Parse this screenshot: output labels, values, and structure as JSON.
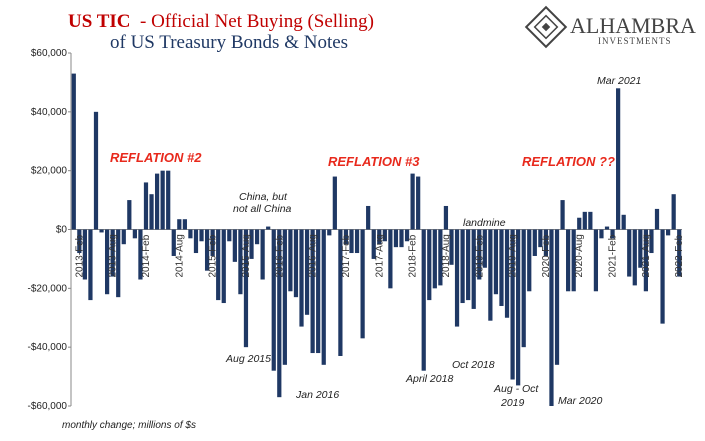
{
  "chart_data": {
    "type": "bar",
    "title_prefix": "US TIC",
    "title": "- Official Net Buying (Selling)",
    "title_line2": "of US Treasury Bonds & Notes",
    "logo": "ALHAMBRA",
    "logo_sub": "INVESTMENTS",
    "note": "monthly change; millions of $s",
    "color": "#1f3864",
    "categories": [
      null,
      "2013-Feb",
      null,
      null,
      null,
      null,
      null,
      "2013-Aug",
      null,
      null,
      null,
      null,
      null,
      "2014-Feb",
      null,
      null,
      null,
      null,
      null,
      "2014-Aug",
      null,
      null,
      null,
      null,
      null,
      "2015-Feb",
      null,
      null,
      null,
      null,
      null,
      "2015-Aug",
      null,
      null,
      null,
      null,
      null,
      "2016-Feb",
      null,
      null,
      null,
      null,
      null,
      "2016-Aug",
      null,
      null,
      null,
      null,
      null,
      "2017-Feb",
      null,
      null,
      null,
      null,
      null,
      "2017-Aug",
      null,
      null,
      null,
      null,
      null,
      "2018-Feb",
      null,
      null,
      null,
      null,
      null,
      "2018-Aug",
      null,
      null,
      null,
      null,
      null,
      "2019-Feb",
      null,
      null,
      null,
      null,
      null,
      "2019-Aug",
      null,
      null,
      null,
      null,
      null,
      "2020-Feb",
      null,
      null,
      null,
      null,
      null,
      "2020-Aug",
      null,
      null,
      null,
      null,
      null,
      "2021-Feb",
      null,
      null,
      null,
      null,
      null,
      "2021-Aug",
      null,
      null,
      null,
      null,
      null,
      "2022-Feb"
    ],
    "values": [
      53000,
      -8000,
      -17000,
      -24000,
      40000,
      -1000,
      -22000,
      -16000,
      -23000,
      -5000,
      10000,
      -3000,
      -17000,
      16000,
      12000,
      19000,
      20000,
      20000,
      -9000,
      3500,
      3500,
      -3000,
      -8000,
      -4000,
      -14000,
      -9000,
      -24000,
      -25000,
      -4000,
      -11000,
      -22000,
      -40000,
      -10000,
      -5000,
      -17000,
      1000,
      -48000,
      -57000,
      -46000,
      -21000,
      -23000,
      -33000,
      -29000,
      -42000,
      -42000,
      -46000,
      -2000,
      18000,
      -43000,
      -5000,
      -8000,
      -8000,
      -37000,
      8000,
      -10000,
      -5000,
      -4000,
      -20000,
      -6000,
      -6000,
      -4000,
      19000,
      18000,
      -48000,
      -24000,
      -20000,
      -19000,
      8000,
      -12000,
      -33000,
      -25000,
      -24000,
      -27000,
      -17000,
      -13000,
      -31000,
      -22000,
      -26000,
      -30000,
      -51000,
      -53000,
      -40000,
      -21000,
      -9000,
      -6000,
      -9000,
      -60000,
      -46000,
      10000,
      -21000,
      -21000,
      4000,
      6000,
      6000,
      -21000,
      -3000,
      1000,
      -3000,
      48000,
      5000,
      -16000,
      -19000,
      -13000,
      -21000,
      -8000,
      7000,
      -32000,
      -2000,
      12000,
      -16000
    ],
    "ylim": [
      -60000,
      60000
    ],
    "yticks": [
      {
        "value": -60000,
        "label": "-$60,000"
      },
      {
        "value": -40000,
        "label": "-$40,000"
      },
      {
        "value": -20000,
        "label": "-$20,000"
      },
      {
        "value": 0,
        "label": "$0"
      },
      {
        "value": 20000,
        "label": "$20,000"
      },
      {
        "value": 40000,
        "label": "$40,000"
      },
      {
        "value": 60000,
        "label": "$60,000"
      }
    ],
    "grid": false,
    "annotations": [
      "REFLATION #2",
      "REFLATION #3",
      "REFLATION ??",
      "China, but",
      "not all China",
      "Aug 2015",
      "Jan 2016",
      "April 2018",
      "Oct 2018",
      "Aug - Oct",
      "2019",
      "Mar 2020",
      "Mar 2021",
      "landmine"
    ]
  }
}
